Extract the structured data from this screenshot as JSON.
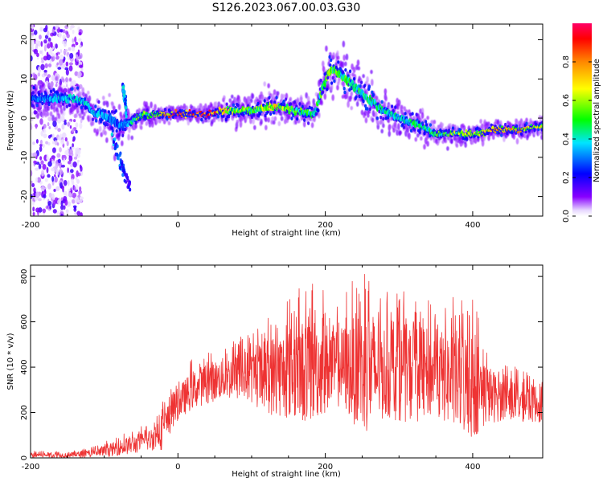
{
  "figure_title": "S126.2023.067.00.03.G30",
  "chart_data": [
    {
      "type": "heatmap",
      "title": "",
      "xlabel": "Height of straight line (km)",
      "ylabel": "Frequency (Hz)",
      "xlim": [
        -200,
        495
      ],
      "ylim": [
        -25,
        24
      ],
      "xticks": [
        -200,
        0,
        200,
        400
      ],
      "yticks": [
        -20,
        -10,
        0,
        10,
        20
      ],
      "grid": false,
      "colorbar": {
        "label": "Normalized spectral amplitude",
        "range": [
          0,
          1
        ],
        "ticks": [
          "0.0",
          "0.2",
          "0.4",
          "0.6",
          "0.8"
        ],
        "colormap": [
          "#8800ff",
          "#0000ff",
          "#00e5ff",
          "#00ff00",
          "#ffff00",
          "#ff8800",
          "#ff0000",
          "#ff0066"
        ]
      },
      "noise_region_x": [
        -200,
        -130
      ],
      "ridge": {
        "x": [
          -200,
          -180,
          -160,
          -140,
          -125,
          -115,
          -105,
          -95,
          -85,
          -75,
          -65,
          -55,
          -45,
          -30,
          0,
          40,
          70,
          100,
          130,
          160,
          185,
          195,
          205,
          215,
          240,
          270,
          300,
          330,
          350,
          380,
          400,
          430,
          460,
          495
        ],
        "y": [
          5,
          5,
          5,
          5,
          4,
          1,
          1,
          0,
          -1,
          -2,
          -1,
          0,
          1,
          1,
          1,
          1,
          2,
          2,
          3,
          2,
          1,
          7,
          12,
          12,
          8,
          3,
          0,
          -2,
          -4,
          -4,
          -4,
          -3,
          -3,
          -2
        ],
        "amplitude": [
          0.3,
          0.3,
          0.35,
          0.4,
          0.4,
          0.35,
          0.35,
          0.3,
          0.3,
          0.3,
          0.35,
          0.5,
          0.55,
          0.6,
          0.9,
          0.95,
          0.6,
          0.5,
          0.65,
          0.5,
          0.45,
          0.5,
          0.55,
          0.5,
          0.45,
          0.45,
          0.4,
          0.45,
          0.5,
          0.55,
          0.6,
          0.75,
          0.7,
          0.6
        ],
        "spread_hz": [
          2.5,
          2.5,
          2.5,
          2.5,
          2.5,
          2.5,
          3,
          3.5,
          4,
          3,
          2,
          1.5,
          1.5,
          1.2,
          1,
          1.2,
          2,
          2.5,
          2.5,
          2.5,
          2.5,
          3,
          3.5,
          3.5,
          3.5,
          3,
          2.5,
          2.2,
          1.8,
          1.5,
          1.4,
          1.2,
          1.2,
          1.2
        ]
      },
      "branches": [
        {
          "x": [
            -90,
            -80,
            -70,
            -65
          ],
          "y": [
            -4,
            -10,
            -15,
            -18
          ],
          "amplitude": [
            0.3,
            0.25,
            0.2,
            0.15
          ]
        },
        {
          "x": [
            -75,
            -72,
            -70
          ],
          "y": [
            8,
            5,
            2
          ],
          "amplitude": [
            0.3,
            0.3,
            0.3
          ]
        }
      ]
    },
    {
      "type": "line",
      "title": "",
      "xlabel": "Height of straight line (km)",
      "ylabel": "SNR (10 * v/v)",
      "xlim": [
        -200,
        495
      ],
      "ylim": [
        0,
        850
      ],
      "xticks": [
        -200,
        0,
        200,
        400
      ],
      "yticks": [
        0,
        200,
        400,
        600,
        800
      ],
      "color": "#ee3333",
      "grid": false,
      "envelope": {
        "x": [
          -200,
          -150,
          -120,
          -100,
          -80,
          -60,
          -40,
          -20,
          -10,
          0,
          20,
          40,
          60,
          80,
          100,
          120,
          140,
          160,
          180,
          200,
          220,
          240,
          260,
          280,
          300,
          320,
          340,
          360,
          380,
          400,
          420,
          440,
          460,
          480,
          495
        ],
        "mean": [
          12,
          12,
          18,
          28,
          45,
          60,
          75,
          120,
          180,
          240,
          300,
          330,
          350,
          360,
          360,
          360,
          370,
          380,
          390,
          400,
          400,
          390,
          380,
          380,
          380,
          370,
          370,
          360,
          340,
          320,
          280,
          260,
          250,
          240,
          240
        ],
        "max": [
          30,
          30,
          45,
          70,
          100,
          130,
          150,
          260,
          300,
          360,
          440,
          480,
          500,
          540,
          560,
          640,
          690,
          740,
          790,
          740,
          690,
          800,
          850,
          730,
          740,
          730,
          700,
          700,
          720,
          720,
          500,
          420,
          400,
          380,
          380
        ]
      }
    }
  ]
}
